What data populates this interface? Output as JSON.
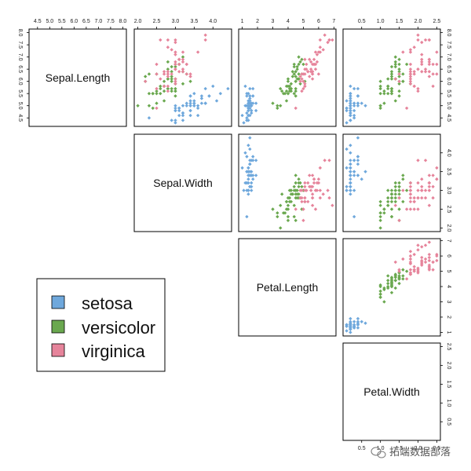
{
  "chart_data": {
    "type": "scatter",
    "layout": "pairs-upper",
    "variables": [
      "Sepal.Length",
      "Sepal.Width",
      "Petal.Length",
      "Petal.Width"
    ],
    "ranges": [
      [
        4.3,
        8.0
      ],
      [
        2.0,
        4.4
      ],
      [
        1.0,
        6.9
      ],
      [
        0.1,
        2.5
      ]
    ],
    "ticks": [
      [
        4.5,
        5.0,
        5.5,
        6.0,
        6.5,
        7.0,
        7.5,
        8.0
      ],
      [
        2.0,
        2.5,
        3.0,
        3.5,
        4.0
      ],
      [
        1,
        2,
        3,
        4,
        5,
        6,
        7
      ],
      [
        0.5,
        1.0,
        1.5,
        2.0,
        2.5
      ]
    ],
    "tick_labels": [
      [
        "4.5",
        "5.0",
        "5.5",
        "6.0",
        "6.5",
        "7.0",
        "7.5",
        "8.0"
      ],
      [
        "2.0",
        "2.5",
        "3.0",
        "3.5",
        "4.0"
      ],
      [
        "1",
        "2",
        "3",
        "4",
        "5",
        "6",
        "7"
      ],
      [
        "0.5",
        "1.0",
        "1.5",
        "2.0",
        "2.5"
      ]
    ],
    "series": [
      {
        "name": "setosa",
        "color": "#6fa8dc",
        "points": [
          [
            5.1,
            3.5,
            1.4,
            0.2
          ],
          [
            4.9,
            3.0,
            1.4,
            0.2
          ],
          [
            4.7,
            3.2,
            1.3,
            0.2
          ],
          [
            4.6,
            3.1,
            1.5,
            0.2
          ],
          [
            5.0,
            3.6,
            1.4,
            0.2
          ],
          [
            5.4,
            3.9,
            1.7,
            0.4
          ],
          [
            4.6,
            3.4,
            1.4,
            0.3
          ],
          [
            5.0,
            3.4,
            1.5,
            0.2
          ],
          [
            4.4,
            2.9,
            1.4,
            0.2
          ],
          [
            4.9,
            3.1,
            1.5,
            0.1
          ],
          [
            5.4,
            3.7,
            1.5,
            0.2
          ],
          [
            4.8,
            3.4,
            1.6,
            0.2
          ],
          [
            4.8,
            3.0,
            1.4,
            0.1
          ],
          [
            4.3,
            3.0,
            1.1,
            0.1
          ],
          [
            5.8,
            4.0,
            1.2,
            0.2
          ],
          [
            5.7,
            4.4,
            1.5,
            0.4
          ],
          [
            5.4,
            3.9,
            1.3,
            0.4
          ],
          [
            5.1,
            3.5,
            1.4,
            0.3
          ],
          [
            5.7,
            3.8,
            1.7,
            0.3
          ],
          [
            5.1,
            3.8,
            1.5,
            0.3
          ],
          [
            5.4,
            3.4,
            1.7,
            0.2
          ],
          [
            5.1,
            3.7,
            1.5,
            0.4
          ],
          [
            4.6,
            3.6,
            1.0,
            0.2
          ],
          [
            5.1,
            3.3,
            1.7,
            0.5
          ],
          [
            4.8,
            3.4,
            1.9,
            0.2
          ],
          [
            5.0,
            3.0,
            1.6,
            0.2
          ],
          [
            5.0,
            3.4,
            1.6,
            0.4
          ],
          [
            5.2,
            3.5,
            1.5,
            0.2
          ],
          [
            5.2,
            3.4,
            1.4,
            0.2
          ],
          [
            4.7,
            3.2,
            1.6,
            0.2
          ],
          [
            4.8,
            3.1,
            1.6,
            0.2
          ],
          [
            5.4,
            3.4,
            1.5,
            0.4
          ],
          [
            5.2,
            4.1,
            1.5,
            0.1
          ],
          [
            5.5,
            4.2,
            1.4,
            0.2
          ],
          [
            4.9,
            3.1,
            1.5,
            0.2
          ],
          [
            5.0,
            3.2,
            1.2,
            0.2
          ],
          [
            5.5,
            3.5,
            1.3,
            0.2
          ],
          [
            4.9,
            3.6,
            1.4,
            0.1
          ],
          [
            4.4,
            3.0,
            1.3,
            0.2
          ],
          [
            5.1,
            3.4,
            1.5,
            0.2
          ],
          [
            5.0,
            3.5,
            1.3,
            0.3
          ],
          [
            4.5,
            2.3,
            1.3,
            0.3
          ],
          [
            4.4,
            3.2,
            1.3,
            0.2
          ],
          [
            5.0,
            3.5,
            1.6,
            0.6
          ],
          [
            5.1,
            3.8,
            1.9,
            0.4
          ],
          [
            4.8,
            3.0,
            1.4,
            0.3
          ],
          [
            5.1,
            3.8,
            1.6,
            0.2
          ],
          [
            4.6,
            3.2,
            1.4,
            0.2
          ],
          [
            5.3,
            3.7,
            1.5,
            0.2
          ],
          [
            5.0,
            3.3,
            1.4,
            0.2
          ]
        ]
      },
      {
        "name": "versicolor",
        "color": "#6aa84f",
        "points": [
          [
            7.0,
            3.2,
            4.7,
            1.4
          ],
          [
            6.4,
            3.2,
            4.5,
            1.5
          ],
          [
            6.9,
            3.1,
            4.9,
            1.5
          ],
          [
            5.5,
            2.3,
            4.0,
            1.3
          ],
          [
            6.5,
            2.8,
            4.6,
            1.5
          ],
          [
            5.7,
            2.8,
            4.5,
            1.3
          ],
          [
            6.3,
            3.3,
            4.7,
            1.6
          ],
          [
            4.9,
            2.4,
            3.3,
            1.0
          ],
          [
            6.6,
            2.9,
            4.6,
            1.3
          ],
          [
            5.2,
            2.7,
            3.9,
            1.4
          ],
          [
            5.0,
            2.0,
            3.5,
            1.0
          ],
          [
            5.9,
            3.0,
            4.2,
            1.5
          ],
          [
            6.0,
            2.2,
            4.0,
            1.0
          ],
          [
            6.1,
            2.9,
            4.7,
            1.4
          ],
          [
            5.6,
            2.9,
            3.6,
            1.3
          ],
          [
            6.7,
            3.1,
            4.4,
            1.4
          ],
          [
            5.6,
            3.0,
            4.5,
            1.5
          ],
          [
            5.8,
            2.7,
            4.1,
            1.0
          ],
          [
            6.2,
            2.2,
            4.5,
            1.5
          ],
          [
            5.6,
            2.5,
            3.9,
            1.1
          ],
          [
            5.9,
            3.2,
            4.8,
            1.8
          ],
          [
            6.1,
            2.8,
            4.0,
            1.3
          ],
          [
            6.3,
            2.5,
            4.9,
            1.5
          ],
          [
            6.1,
            2.8,
            4.7,
            1.2
          ],
          [
            6.4,
            2.9,
            4.3,
            1.3
          ],
          [
            6.6,
            3.0,
            4.4,
            1.4
          ],
          [
            6.8,
            2.8,
            4.8,
            1.4
          ],
          [
            6.7,
            3.0,
            5.0,
            1.7
          ],
          [
            6.0,
            2.9,
            4.5,
            1.5
          ],
          [
            5.7,
            2.6,
            3.5,
            1.0
          ],
          [
            5.5,
            2.4,
            3.8,
            1.1
          ],
          [
            5.5,
            2.4,
            3.7,
            1.0
          ],
          [
            5.8,
            2.7,
            3.9,
            1.2
          ],
          [
            6.0,
            2.7,
            5.1,
            1.6
          ],
          [
            5.4,
            3.0,
            4.5,
            1.5
          ],
          [
            6.0,
            3.4,
            4.5,
            1.6
          ],
          [
            6.7,
            3.1,
            4.7,
            1.5
          ],
          [
            6.3,
            2.3,
            4.4,
            1.3
          ],
          [
            5.6,
            3.0,
            4.1,
            1.3
          ],
          [
            5.5,
            2.5,
            4.0,
            1.3
          ],
          [
            5.5,
            2.6,
            4.4,
            1.2
          ],
          [
            6.1,
            3.0,
            4.6,
            1.4
          ],
          [
            5.8,
            2.6,
            4.0,
            1.2
          ],
          [
            5.0,
            2.3,
            3.3,
            1.0
          ],
          [
            5.6,
            2.7,
            4.2,
            1.3
          ],
          [
            5.7,
            3.0,
            4.2,
            1.2
          ],
          [
            5.7,
            2.9,
            4.2,
            1.3
          ],
          [
            6.2,
            2.9,
            4.3,
            1.3
          ],
          [
            5.1,
            2.5,
            3.0,
            1.1
          ],
          [
            5.7,
            2.8,
            4.1,
            1.3
          ]
        ]
      },
      {
        "name": "virginica",
        "color": "#e6849b",
        "points": [
          [
            6.3,
            3.3,
            6.0,
            2.5
          ],
          [
            5.8,
            2.7,
            5.1,
            1.9
          ],
          [
            7.1,
            3.0,
            5.9,
            2.1
          ],
          [
            6.3,
            2.9,
            5.6,
            1.8
          ],
          [
            6.5,
            3.0,
            5.8,
            2.2
          ],
          [
            7.6,
            3.0,
            6.6,
            2.1
          ],
          [
            4.9,
            2.5,
            4.5,
            1.7
          ],
          [
            7.3,
            2.9,
            6.3,
            1.8
          ],
          [
            6.7,
            2.5,
            5.8,
            1.8
          ],
          [
            7.2,
            3.6,
            6.1,
            2.5
          ],
          [
            6.5,
            3.2,
            5.1,
            2.0
          ],
          [
            6.4,
            2.7,
            5.3,
            1.9
          ],
          [
            6.8,
            3.0,
            5.5,
            2.1
          ],
          [
            5.7,
            2.5,
            5.0,
            2.0
          ],
          [
            5.8,
            2.8,
            5.1,
            2.4
          ],
          [
            6.4,
            3.2,
            5.3,
            2.3
          ],
          [
            6.5,
            3.0,
            5.5,
            1.8
          ],
          [
            7.7,
            3.8,
            6.7,
            2.2
          ],
          [
            7.7,
            2.6,
            6.9,
            2.3
          ],
          [
            6.0,
            2.2,
            5.0,
            1.5
          ],
          [
            6.9,
            3.2,
            5.7,
            2.3
          ],
          [
            5.6,
            2.8,
            4.9,
            2.0
          ],
          [
            7.7,
            2.8,
            6.7,
            2.0
          ],
          [
            6.3,
            2.7,
            4.9,
            1.8
          ],
          [
            6.7,
            3.3,
            5.7,
            2.1
          ],
          [
            7.2,
            3.2,
            6.0,
            1.8
          ],
          [
            6.2,
            2.8,
            4.8,
            1.8
          ],
          [
            6.1,
            3.0,
            4.9,
            1.8
          ],
          [
            6.4,
            2.8,
            5.6,
            2.1
          ],
          [
            7.2,
            3.0,
            5.8,
            1.6
          ],
          [
            7.4,
            2.8,
            6.1,
            1.9
          ],
          [
            7.9,
            3.8,
            6.4,
            2.0
          ],
          [
            6.4,
            2.8,
            5.6,
            2.2
          ],
          [
            6.3,
            2.8,
            5.1,
            1.5
          ],
          [
            6.1,
            2.6,
            5.6,
            1.4
          ],
          [
            7.7,
            3.0,
            6.1,
            2.3
          ],
          [
            6.3,
            3.4,
            5.6,
            2.4
          ],
          [
            6.4,
            3.1,
            5.5,
            1.8
          ],
          [
            6.0,
            3.0,
            4.8,
            1.8
          ],
          [
            6.9,
            3.1,
            5.4,
            2.1
          ],
          [
            6.7,
            3.1,
            5.6,
            2.4
          ],
          [
            6.9,
            3.1,
            5.1,
            2.3
          ],
          [
            5.8,
            2.7,
            5.1,
            1.9
          ],
          [
            6.8,
            3.2,
            5.9,
            2.3
          ],
          [
            6.7,
            3.3,
            5.7,
            2.5
          ],
          [
            6.7,
            3.0,
            5.2,
            2.3
          ],
          [
            6.3,
            2.5,
            5.0,
            1.9
          ],
          [
            6.5,
            3.0,
            5.2,
            2.0
          ],
          [
            6.2,
            3.4,
            5.4,
            2.3
          ],
          [
            5.9,
            3.0,
            5.1,
            1.8
          ]
        ]
      }
    ],
    "legend": {
      "placement": "bottom-left",
      "entries": [
        "setosa",
        "versicolor",
        "virginica"
      ]
    },
    "grid": false
  },
  "watermark": {
    "text": "拓端数据部落"
  }
}
